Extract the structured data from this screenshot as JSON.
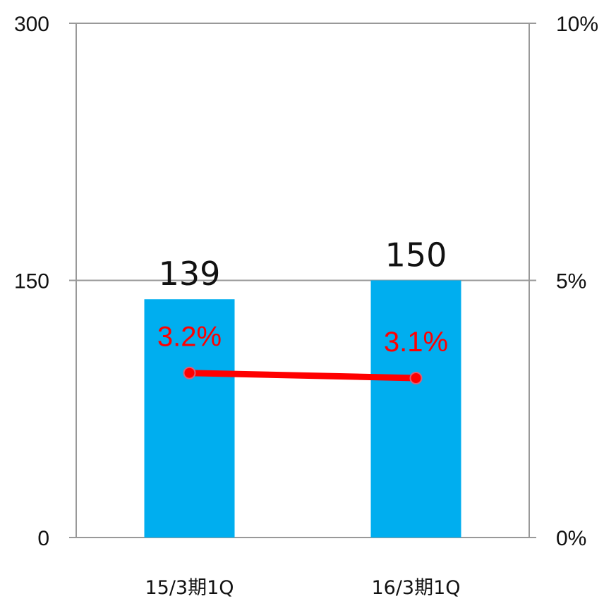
{
  "chart_data": {
    "type": "bar",
    "title": "",
    "categories": [
      "15/3期1Q",
      "16/3期1Q"
    ],
    "series": [
      {
        "type": "bar",
        "values": [
          139,
          150
        ],
        "labels": [
          "139",
          "150"
        ],
        "color": "#00AEEF"
      },
      {
        "type": "line",
        "axis": "right",
        "values": [
          3.2,
          3.1
        ],
        "labels": [
          "3.2%",
          "3.1%"
        ],
        "color": "#FF0000"
      }
    ],
    "y_left": {
      "ticks": [
        "0",
        "150",
        "300"
      ],
      "tick_values": [
        0,
        150,
        300
      ],
      "lim": [
        0,
        300
      ]
    },
    "y_right": {
      "ticks": [
        "0%",
        "5%",
        "10%"
      ],
      "tick_values": [
        0,
        5,
        10
      ],
      "lim": [
        0,
        10
      ]
    },
    "grid": true,
    "legend": "none"
  }
}
